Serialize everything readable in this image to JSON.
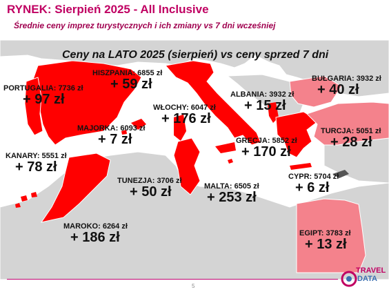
{
  "header": {
    "title": "RYNEK: Sierpień 2025 - All Inclusive",
    "subtitle": "Średnie ceny imprez turystycznych i ich zmiany vs 7 dni wcześniej"
  },
  "map_title": "Ceny na LATO 2025 (sierpień) vs ceny sprzed 7 dni",
  "countries": {
    "portugalia": {
      "label": "PORTUGALIA: 7736 zł",
      "change": "+ 97 zł"
    },
    "hiszpania": {
      "label": "HISZPANIA: 6855 zł",
      "change": "+ 59 zł"
    },
    "majorka": {
      "label": "MAJORKA: 6093 zł",
      "change": "+ 7 zł"
    },
    "kanary": {
      "label": "KANARY: 5551 zł",
      "change": "+ 78 zł"
    },
    "maroko": {
      "label": "MAROKO: 6264 zł",
      "change": "+ 186 zł"
    },
    "wlochy": {
      "label": "WŁOCHY: 6047 zł",
      "change": "+ 176 zł"
    },
    "tunezja": {
      "label": "TUNEZJA: 3706 zł",
      "change": "+ 50 zł"
    },
    "malta": {
      "label": "MALTA: 6505 zł",
      "change": "+ 253 zł"
    },
    "albania": {
      "label": "ALBANIA: 3932 zł",
      "change": "+ 15 zł"
    },
    "grecja": {
      "label": "GRECJA: 5852 zł",
      "change": "+ 170 zł"
    },
    "bulgaria": {
      "label": "BUŁGARIA: 3932 zł",
      "change": "+ 40 zł"
    },
    "turcja": {
      "label": "TURCJA: 5051 zł",
      "change": "+ 28 zł"
    },
    "cypr": {
      "label": "CYPR: 5704 zł",
      "change": "+ 6 zł"
    },
    "egipt": {
      "label": "EGIPT: 3783 zł",
      "change": "+ 13 zł"
    }
  },
  "colors": {
    "land": "#d4d4d4",
    "sea": "#ffffff",
    "highlight": "#ff0000",
    "highlight_light": "#f4828c",
    "brand": "#c00062"
  },
  "page_number": "5",
  "logo": {
    "line1": "TRAVEL",
    "line2": "DATA"
  }
}
